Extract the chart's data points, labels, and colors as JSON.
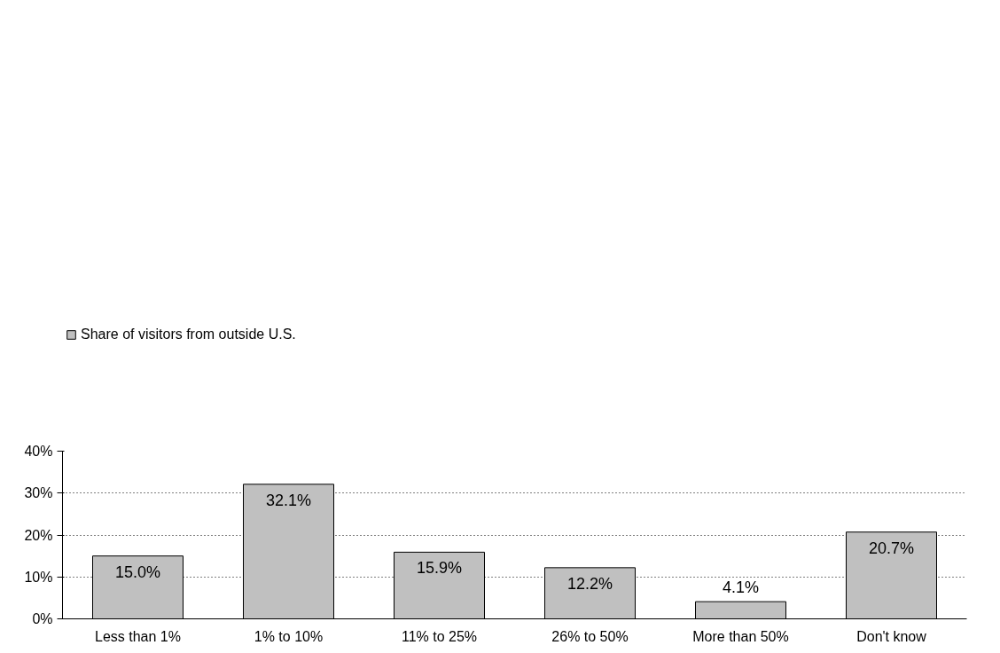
{
  "chart_data": {
    "type": "bar",
    "categories": [
      "Less than 1%",
      "1% to 10%",
      "11% to 25%",
      "26% to 50%",
      "More than 50%",
      "Don't know"
    ],
    "series": [
      {
        "name": "Share of visitors from outside U.S.",
        "color": "#c0c0c0",
        "values": [
          15.0,
          32.1,
          15.9,
          12.2,
          4.1,
          20.7
        ],
        "value_labels": [
          "15.0%",
          "32.1%",
          "15.9%",
          "12.2%",
          "4.1%",
          "20.7%"
        ]
      }
    ],
    "ylim": [
      0,
      40
    ],
    "yticks": [
      {
        "value": 0,
        "label": "0%"
      },
      {
        "value": 10,
        "label": "10%"
      },
      {
        "value": 20,
        "label": "20%"
      },
      {
        "value": 30,
        "label": "30%"
      },
      {
        "value": 40,
        "label": "40%"
      }
    ],
    "grid": "y",
    "legend": "top left"
  }
}
